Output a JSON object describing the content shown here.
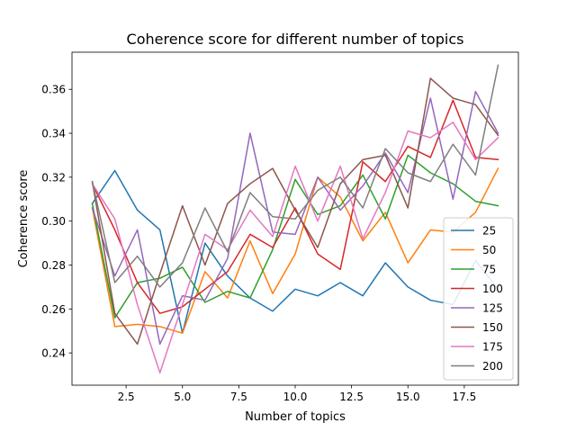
{
  "chart_data": {
    "type": "line",
    "title": "Coherence score for different number of topics",
    "xlabel": "Number of topics",
    "ylabel": "Coherence score",
    "xlim": [
      0.1,
      19.9
    ],
    "ylim": [
      0.2253,
      0.3769
    ],
    "xticks": [
      2.5,
      5.0,
      7.5,
      10.0,
      12.5,
      15.0,
      17.5
    ],
    "xtick_labels": [
      "2.5",
      "5.0",
      "7.5",
      "10.0",
      "12.5",
      "15.0",
      "17.5"
    ],
    "yticks": [
      0.24,
      0.26,
      0.28,
      0.3,
      0.32,
      0.34,
      0.36
    ],
    "ytick_labels": [
      "0.24",
      "0.26",
      "0.28",
      "0.30",
      "0.32",
      "0.34",
      "0.36"
    ],
    "grid": false,
    "legend_position": "lower-right",
    "x": [
      1,
      2,
      3,
      4,
      5,
      6,
      7,
      8,
      9,
      10,
      11,
      12,
      13,
      14,
      15,
      16,
      17,
      18,
      19
    ],
    "series": [
      {
        "name": "25",
        "color": "#1f77b4",
        "values": [
          0.308,
          0.323,
          0.305,
          0.296,
          0.249,
          0.29,
          0.275,
          0.265,
          0.259,
          0.269,
          0.266,
          0.272,
          0.266,
          0.281,
          0.27,
          0.264,
          0.262,
          0.282,
          0.269
        ]
      },
      {
        "name": "50",
        "color": "#ff7f0e",
        "values": [
          0.306,
          0.252,
          0.253,
          0.252,
          0.249,
          0.277,
          0.265,
          0.291,
          0.267,
          0.285,
          0.32,
          0.311,
          0.291,
          0.304,
          0.281,
          0.296,
          0.295,
          0.304,
          0.324
        ]
      },
      {
        "name": "75",
        "color": "#2ca02c",
        "values": [
          0.308,
          0.256,
          0.272,
          0.274,
          0.279,
          0.263,
          0.268,
          0.265,
          0.287,
          0.319,
          0.303,
          0.307,
          0.321,
          0.301,
          0.33,
          0.322,
          0.317,
          0.309,
          0.307
        ]
      },
      {
        "name": "100",
        "color": "#d62728",
        "values": [
          0.317,
          0.296,
          0.272,
          0.258,
          0.261,
          0.269,
          0.277,
          0.294,
          0.288,
          0.306,
          0.285,
          0.278,
          0.327,
          0.318,
          0.334,
          0.329,
          0.355,
          0.329,
          0.328
        ]
      },
      {
        "name": "125",
        "color": "#9467bd",
        "values": [
          0.306,
          0.275,
          0.296,
          0.244,
          0.266,
          0.264,
          0.283,
          0.34,
          0.295,
          0.294,
          0.32,
          0.305,
          0.316,
          0.331,
          0.313,
          0.356,
          0.31,
          0.359,
          0.34
        ]
      },
      {
        "name": "150",
        "color": "#8c564b",
        "values": [
          0.318,
          0.258,
          0.244,
          0.276,
          0.307,
          0.28,
          0.308,
          0.317,
          0.324,
          0.305,
          0.288,
          0.317,
          0.328,
          0.33,
          0.306,
          0.365,
          0.356,
          0.353,
          0.339
        ]
      },
      {
        "name": "175",
        "color": "#e377c2",
        "values": [
          0.317,
          0.301,
          0.262,
          0.231,
          0.262,
          0.294,
          0.287,
          0.305,
          0.293,
          0.325,
          0.3,
          0.325,
          0.292,
          0.313,
          0.341,
          0.338,
          0.345,
          0.328,
          0.338
        ]
      },
      {
        "name": "200",
        "color": "#7f7f7f",
        "values": [
          0.318,
          0.272,
          0.284,
          0.27,
          0.281,
          0.306,
          0.286,
          0.313,
          0.302,
          0.301,
          0.314,
          0.32,
          0.306,
          0.333,
          0.322,
          0.318,
          0.335,
          0.321,
          0.371
        ]
      }
    ]
  }
}
